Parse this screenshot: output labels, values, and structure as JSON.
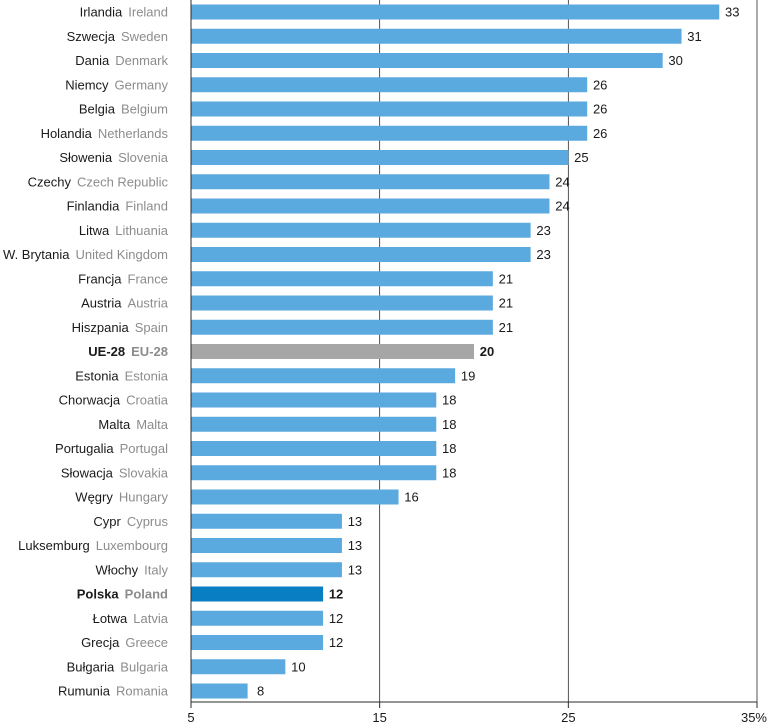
{
  "chart_data": {
    "type": "bar",
    "orientation": "horizontal",
    "categories": [
      {
        "pl": "Irlandia",
        "en": "Ireland"
      },
      {
        "pl": "Szwecja",
        "en": "Sweden"
      },
      {
        "pl": "Dania",
        "en": "Denmark"
      },
      {
        "pl": "Niemcy",
        "en": "Germany"
      },
      {
        "pl": "Belgia",
        "en": "Belgium"
      },
      {
        "pl": "Holandia",
        "en": "Netherlands"
      },
      {
        "pl": "Słowenia",
        "en": "Slovenia"
      },
      {
        "pl": "Czechy",
        "en": "Czech Republic"
      },
      {
        "pl": "Finlandia",
        "en": "Finland"
      },
      {
        "pl": "Litwa",
        "en": "Lithuania"
      },
      {
        "pl": "W. Brytania",
        "en": "United Kingdom"
      },
      {
        "pl": "Francja",
        "en": "France"
      },
      {
        "pl": "Austria",
        "en": "Austria"
      },
      {
        "pl": "Hiszpania",
        "en": "Spain"
      },
      {
        "pl": "UE-28",
        "en": "EU-28"
      },
      {
        "pl": "Estonia",
        "en": "Estonia"
      },
      {
        "pl": "Chorwacja",
        "en": "Croatia"
      },
      {
        "pl": "Malta",
        "en": "Malta"
      },
      {
        "pl": "Portugalia",
        "en": "Portugal"
      },
      {
        "pl": "Słowacja",
        "en": "Slovakia"
      },
      {
        "pl": "Węgry",
        "en": "Hungary"
      },
      {
        "pl": "Cypr",
        "en": "Cyprus"
      },
      {
        "pl": "Luksemburg",
        "en": "Luxembourg"
      },
      {
        "pl": "Włochy",
        "en": "Italy"
      },
      {
        "pl": "Polska",
        "en": "Poland"
      },
      {
        "pl": "Łotwa",
        "en": "Latvia"
      },
      {
        "pl": "Grecja",
        "en": "Greece"
      },
      {
        "pl": "Bułgaria",
        "en": "Bulgaria"
      },
      {
        "pl": "Rumunia",
        "en": "Romania"
      }
    ],
    "values": [
      33,
      31,
      30,
      26,
      26,
      26,
      25,
      24,
      24,
      23,
      23,
      21,
      21,
      21,
      20,
      19,
      18,
      18,
      18,
      18,
      16,
      13,
      13,
      13,
      12,
      12,
      12,
      10,
      8
    ],
    "value_labels": [
      "33",
      "31",
      "30",
      "26",
      "26",
      "26",
      "25",
      "24",
      "24",
      "23",
      "23",
      "21",
      "21",
      "21",
      "20",
      "19",
      "18",
      "18",
      "18",
      "18",
      "16",
      "13",
      "13",
      "13",
      "12",
      "12",
      "12",
      "10",
      "8"
    ],
    "highlight": {
      "UE-28": "#a6a6a6",
      "Polska": "#0a7ec2"
    },
    "bold_categories": [
      "UE-28",
      "Polska"
    ],
    "bar_color": "#5aaae0",
    "xlim": [
      5,
      35
    ],
    "ticks": [
      5,
      15,
      25,
      35
    ],
    "tick_labels": [
      "5",
      "15",
      "25",
      "35%"
    ],
    "grid": true,
    "title": "",
    "xlabel": "",
    "ylabel": ""
  }
}
